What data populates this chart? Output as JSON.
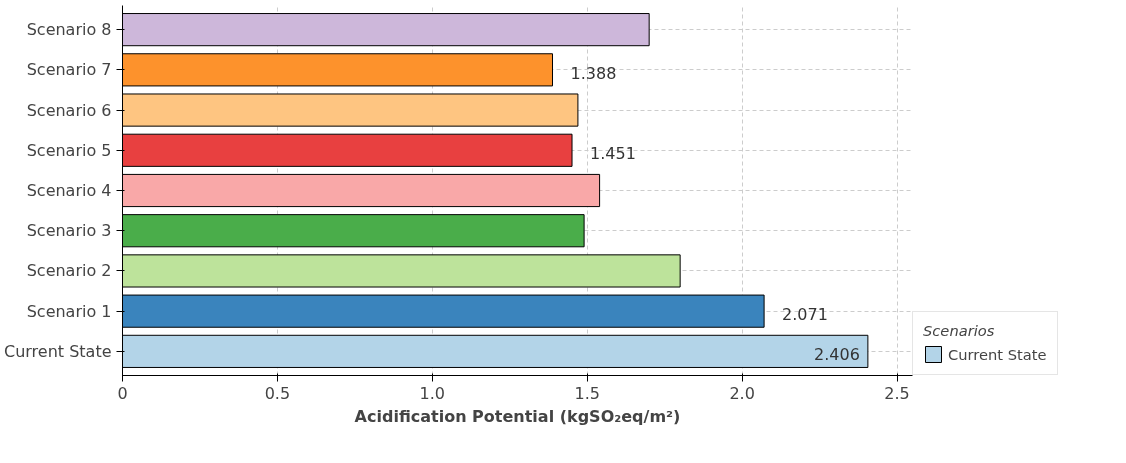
{
  "chart_data": {
    "type": "bar",
    "orientation": "horizontal",
    "xlabel": "Acidification Potential (kgSO₂eq/m²)",
    "legend_title": "Scenarios",
    "legend": "bottom right",
    "grid": true,
    "categories": [
      "Scenario 8",
      "Scenario 7",
      "Scenario 6",
      "Scenario 5",
      "Scenario 4",
      "Scenario 3",
      "Scenario 2",
      "Scenario 1",
      "Current State"
    ],
    "series": [
      {
        "name": "Current State",
        "color": "#b3d4e8",
        "colors": [
          "#cdb7da",
          "#fd922c",
          "#fec581",
          "#e84040",
          "#f9a8a8",
          "#4aad4a",
          "#bde39b",
          "#3a84bd",
          "#b3d4e8"
        ],
        "values": [
          1.7,
          1.388,
          1.47,
          1.451,
          1.54,
          1.49,
          1.8,
          2.071,
          2.406
        ],
        "value_labels": [
          null,
          "1.388",
          null,
          "1.451",
          null,
          null,
          null,
          "2.071",
          "2.406"
        ]
      }
    ],
    "xlim": [
      0,
      2.55
    ],
    "xticks": [
      0,
      {
        "value": 0.5,
        "label": "0.5"
      },
      {
        "value": 1,
        "label": "1.0"
      },
      {
        "value": 1.5,
        "label": "1.5"
      },
      {
        "value": 2,
        "label": "2.0"
      },
      {
        "value": 2.5,
        "label": "2.5"
      }
    ]
  }
}
